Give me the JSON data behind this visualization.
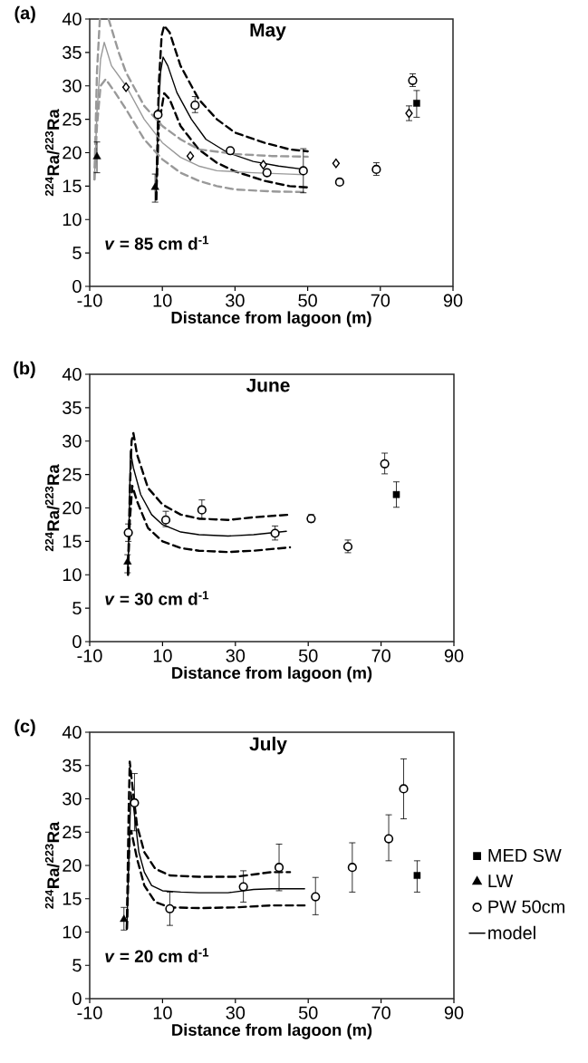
{
  "chart_data": [
    {
      "type": "scatter",
      "title": "May",
      "xlabel": "Distance from lagoon (m)",
      "ylabel": "$^{224}$Ra/$^{223}$Ra",
      "annotations": [
        "(a)",
        "*v* = 85 cm d$^{-1}$"
      ],
      "xlim": [
        -10,
        90
      ],
      "ylim": [
        0,
        40
      ],
      "xticks": [
        -10,
        10,
        30,
        50,
        70,
        90
      ],
      "yticks": [
        0,
        5,
        10,
        15,
        20,
        25,
        30,
        35,
        40
      ],
      "series": [
        {
          "marker": "square",
          "color": "#000000",
          "x": [
            80
          ],
          "values": [
            27.4
          ],
          "errors": [
            [
              25.3,
              29.3
            ]
          ]
        },
        {
          "marker": "triangle",
          "color": "#000000",
          "x": [
            -8,
            8
          ],
          "values": [
            19.4,
            14.8
          ],
          "errors": [
            [
              17,
              21.6
            ],
            [
              12.6,
              16.8
            ]
          ]
        },
        {
          "marker": "circle",
          "color": "#000000",
          "x": [
            8.8,
            19,
            28.7,
            38.8,
            48.8,
            58.8,
            68.9,
            78.9
          ],
          "values": [
            25.7,
            27.1,
            20.3,
            17.0,
            17.3,
            15.6,
            17.5,
            30.8
          ],
          "errors": [
            null,
            [
              26,
              28.4
            ],
            null,
            null,
            [
              14,
              20.6
            ],
            null,
            [
              16.6,
              18.5
            ],
            [
              29.9,
              31.8
            ]
          ]
        },
        {
          "marker": "diamond",
          "color": "#000000",
          "x": [
            0,
            17.7,
            37.8,
            57.8,
            77.9
          ],
          "values": [
            29.8,
            19.5,
            18.2,
            18.4,
            25.9
          ],
          "errors": [
            null,
            null,
            null,
            null,
            [
              24.8,
              27
            ]
          ]
        },
        {
          "type": "line",
          "line_style": "solid",
          "color": "#000000",
          "x": [
            8.3,
            8.8,
            9.5,
            10.2,
            11.5,
            14,
            18,
            22,
            28,
            35,
            42,
            49
          ],
          "values": [
            13,
            25,
            32,
            34.3,
            33,
            29,
            25,
            22,
            20,
            18.7,
            18,
            17.5
          ]
        },
        {
          "type": "line",
          "line_style": "dashed",
          "color": "#000000",
          "x": [
            8.3,
            9,
            9.8,
            10.5,
            12,
            15,
            20,
            25,
            30,
            38,
            45,
            50
          ],
          "values": [
            13,
            30,
            37.5,
            39,
            38,
            33,
            28,
            25,
            23,
            21.5,
            20.5,
            20.2
          ]
        },
        {
          "type": "line",
          "line_style": "dashed",
          "color": "#000000",
          "x": [
            8.3,
            9,
            10.5,
            12,
            15,
            20,
            25,
            30,
            38,
            45,
            50
          ],
          "values": [
            13,
            24,
            28.9,
            28,
            24,
            20.5,
            18.5,
            17.2,
            15.8,
            15,
            14.8
          ]
        },
        {
          "type": "line",
          "line_style": "solid",
          "color": "#999999",
          "x": [
            -8.7,
            -8,
            -7,
            -6,
            -4,
            0,
            5,
            10,
            15,
            20,
            25,
            35,
            45,
            49
          ],
          "values": [
            16,
            26,
            34,
            36.5,
            33,
            30,
            25,
            21.5,
            19.3,
            18,
            17.3,
            17,
            16.8,
            16.7
          ]
        },
        {
          "type": "line",
          "line_style": "dashed",
          "color": "#999999",
          "x": [
            -8.7,
            -8,
            -7.2,
            -6,
            -4.8,
            -2,
            0,
            5,
            10,
            15,
            20,
            30,
            40,
            50
          ],
          "values": [
            16,
            32,
            40,
            null,
            40,
            35,
            32,
            27,
            24,
            22,
            20.5,
            19.8,
            19.5,
            19.4
          ]
        },
        {
          "type": "line",
          "line_style": "dashed",
          "color": "#999999",
          "x": [
            -8.7,
            -8,
            -7,
            -5.6,
            -3,
            0,
            5,
            10,
            15,
            20,
            25,
            30,
            40,
            50
          ],
          "values": [
            16,
            24,
            30,
            31,
            29,
            26.5,
            22,
            19,
            17,
            15.8,
            15,
            14.5,
            14.2,
            14.1
          ]
        }
      ]
    },
    {
      "type": "scatter",
      "title": "June",
      "xlabel": "Distance from lagoon (m)",
      "ylabel": "$^{224}$Ra/$^{223}$Ra",
      "annotations": [
        "(b)",
        "*v* = 30 cm d$^{-1}$"
      ],
      "xlim": [
        -10,
        90
      ],
      "ylim": [
        0,
        40
      ],
      "xticks": [
        -10,
        10,
        30,
        50,
        70,
        90
      ],
      "yticks": [
        0,
        5,
        10,
        15,
        20,
        25,
        30,
        35,
        40
      ],
      "series": [
        {
          "marker": "square",
          "color": "#000000",
          "x": [
            74.2
          ],
          "values": [
            22
          ],
          "errors": [
            [
              20.1,
              23.9
            ]
          ]
        },
        {
          "marker": "triangle",
          "color": "#000000",
          "x": [
            0.4
          ],
          "values": [
            11.9
          ],
          "errors": [
            [
              10.3,
              13
            ]
          ]
        },
        {
          "marker": "circle",
          "color": "#000000",
          "x": [
            0.6,
            10.9,
            20.8,
            40.9,
            50.8,
            60.9,
            71
          ],
          "values": [
            16.3,
            18.2,
            19.7,
            16.2,
            18.4,
            14.2,
            26.6
          ],
          "errors": [
            [
              15,
              17.6
            ],
            [
              17.2,
              19.5
            ],
            [
              18.3,
              21.2
            ],
            [
              15.2,
              17.3
            ],
            [
              17.9,
              19
            ],
            [
              13.3,
              15.2
            ],
            [
              25.1,
              28.2
            ]
          ]
        },
        {
          "type": "line",
          "line_style": "solid",
          "color": "#000000",
          "x": [
            0.5,
            0.9,
            1.2,
            2,
            4,
            7,
            10,
            15,
            20,
            28,
            35,
            44
          ],
          "values": [
            10,
            20,
            28.5,
            26,
            22,
            19,
            17.5,
            16.4,
            16,
            15.8,
            16,
            16.5
          ]
        },
        {
          "type": "line",
          "line_style": "dashed",
          "color": "#000000",
          "x": [
            0.5,
            1,
            1.5,
            2,
            3,
            6,
            10,
            15,
            20,
            28,
            35,
            45
          ],
          "values": [
            10,
            22,
            30,
            31.2,
            28,
            23,
            20.5,
            19,
            18.4,
            18.2,
            18.6,
            19
          ]
        },
        {
          "type": "line",
          "line_style": "dashed",
          "color": "#000000",
          "x": [
            0.5,
            1,
            1.7,
            3,
            6,
            10,
            15,
            20,
            28,
            35,
            45
          ],
          "values": [
            10,
            18,
            23.3,
            21,
            17,
            15,
            14,
            13.6,
            13.4,
            13.6,
            14.1
          ]
        }
      ]
    },
    {
      "type": "scatter",
      "title": "July",
      "xlabel": "Distance from lagoon (m)",
      "ylabel": "$^{224}$Ra/$^{223}$Ra",
      "annotations": [
        "(c)",
        "*v* = 20 cm d$^{-1}$"
      ],
      "xlim": [
        -10,
        90
      ],
      "ylim": [
        0,
        40
      ],
      "xticks": [
        -10,
        10,
        30,
        50,
        70,
        90
      ],
      "yticks": [
        0,
        5,
        10,
        15,
        20,
        25,
        30,
        35,
        40
      ],
      "legend": "right",
      "series": [
        {
          "name": "MED SW",
          "marker": "square",
          "color": "#000000",
          "x": [
            79.9
          ],
          "values": [
            18.5
          ],
          "errors": [
            [
              16,
              20.7
            ]
          ]
        },
        {
          "name": "LW",
          "marker": "triangle",
          "color": "#000000",
          "x": [
            -0.6
          ],
          "values": [
            11.9
          ],
          "errors": [
            [
              10.3,
              13.7
            ]
          ]
        },
        {
          "name": "PW 50cm",
          "marker": "circle",
          "color": "#000000",
          "x": [
            2.3,
            12,
            32.2,
            42,
            52,
            62.1,
            72.1,
            76.2
          ],
          "values": [
            29.4,
            13.5,
            16.8,
            19.7,
            15.3,
            19.7,
            24,
            31.5
          ],
          "errors": [
            [
              25.2,
              33.8
            ],
            [
              11,
              16
            ],
            [
              14.5,
              19.2
            ],
            [
              16.2,
              23.2
            ],
            [
              12.6,
              18.2
            ],
            [
              16,
              23.4
            ],
            [
              20.7,
              27.6
            ],
            [
              27,
              36
            ]
          ]
        },
        {
          "type": "line",
          "name": "model",
          "line_style": "solid",
          "color": "#000000",
          "x": [
            0.2,
            0.8,
            1.3,
            2,
            3.5,
            5,
            7,
            10,
            15,
            20,
            28,
            35,
            40,
            49
          ],
          "values": [
            10.5,
            22,
            31,
            29,
            22,
            19,
            17,
            16.2,
            16,
            15.9,
            15.9,
            16.4,
            16.5,
            16.5
          ]
        },
        {
          "type": "line",
          "line_style": "dashed",
          "color": "#000000",
          "x": [
            0.2,
            0.7,
            1,
            1.5,
            3,
            5,
            8,
            12,
            20,
            30,
            40,
            45
          ],
          "values": [
            10.5,
            28,
            35.6,
            33,
            26,
            22,
            19.5,
            18.5,
            18.3,
            18.3,
            19,
            19
          ]
        },
        {
          "type": "line",
          "line_style": "dashed",
          "color": "#000000",
          "x": [
            0.2,
            1,
            1.4,
            3,
            5,
            8,
            12,
            20,
            30,
            40,
            49
          ],
          "values": [
            10.5,
            25,
            25.2,
            21,
            17,
            14.5,
            13.7,
            13.6,
            13.7,
            14,
            14
          ]
        }
      ]
    }
  ]
}
